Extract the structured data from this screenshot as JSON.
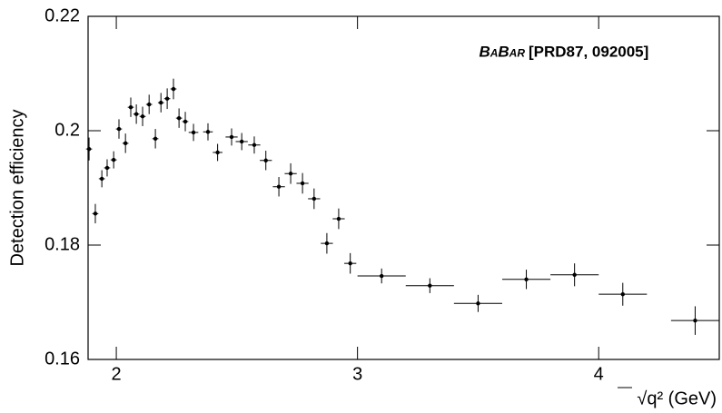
{
  "chart_data": {
    "type": "scatter",
    "ylabel": "Detection efficiency",
    "xlabel": "√q² (GeV)",
    "annotations": [
      "BaBar",
      "[PRD87, 092005]"
    ],
    "color": "#000000",
    "x": [
      1.887,
      1.913,
      1.94,
      1.962,
      1.989,
      2.011,
      2.038,
      2.06,
      2.083,
      2.109,
      2.136,
      2.162,
      2.185,
      2.211,
      2.237,
      2.26,
      2.286,
      2.32,
      2.38,
      2.42,
      2.478,
      2.52,
      2.572,
      2.62,
      2.674,
      2.723,
      2.772,
      2.82,
      2.873,
      2.922,
      2.97,
      3.1,
      3.3,
      3.5,
      3.7,
      3.9,
      4.1,
      4.4
    ],
    "xerr": [
      0.0125,
      0.0125,
      0.0125,
      0.0125,
      0.0125,
      0.0125,
      0.0125,
      0.0125,
      0.0125,
      0.0125,
      0.0125,
      0.0125,
      0.0125,
      0.0125,
      0.0125,
      0.0125,
      0.0125,
      0.02,
      0.02,
      0.02,
      0.025,
      0.025,
      0.025,
      0.025,
      0.025,
      0.025,
      0.025,
      0.025,
      0.025,
      0.025,
      0.025,
      0.1,
      0.1,
      0.1,
      0.1,
      0.1,
      0.1,
      0.1
    ],
    "values": [
      0.1968,
      0.1855,
      0.1916,
      0.1935,
      0.1949,
      0.2003,
      0.1978,
      0.2041,
      0.2029,
      0.2025,
      0.2046,
      0.1986,
      0.2049,
      0.2056,
      0.2073,
      0.2022,
      0.2016,
      0.1997,
      0.1998,
      0.1962,
      0.1989,
      0.1981,
      0.1975,
      0.1948,
      0.1902,
      0.1925,
      0.1908,
      0.1881,
      0.1803,
      0.1846,
      0.1768,
      0.1746,
      0.1729,
      0.1698,
      0.174,
      0.1748,
      0.1714,
      0.1668
    ],
    "errors": [
      0.002,
      0.0017,
      0.0015,
      0.0015,
      0.0015,
      0.0017,
      0.0017,
      0.0017,
      0.0017,
      0.0017,
      0.0017,
      0.0017,
      0.0017,
      0.0018,
      0.0018,
      0.0017,
      0.0017,
      0.0015,
      0.0015,
      0.0015,
      0.0015,
      0.0015,
      0.0015,
      0.0017,
      0.0017,
      0.0018,
      0.0018,
      0.0018,
      0.0018,
      0.0018,
      0.0018,
      0.0013,
      0.0013,
      0.0015,
      0.0017,
      0.002,
      0.002,
      0.0025
    ],
    "xlim": [
      1.883,
      4.5
    ],
    "ylim": [
      0.16,
      0.22
    ],
    "xticks": [
      2,
      3,
      4
    ],
    "yticks": [
      0.16,
      0.18,
      0.2,
      0.22
    ]
  }
}
